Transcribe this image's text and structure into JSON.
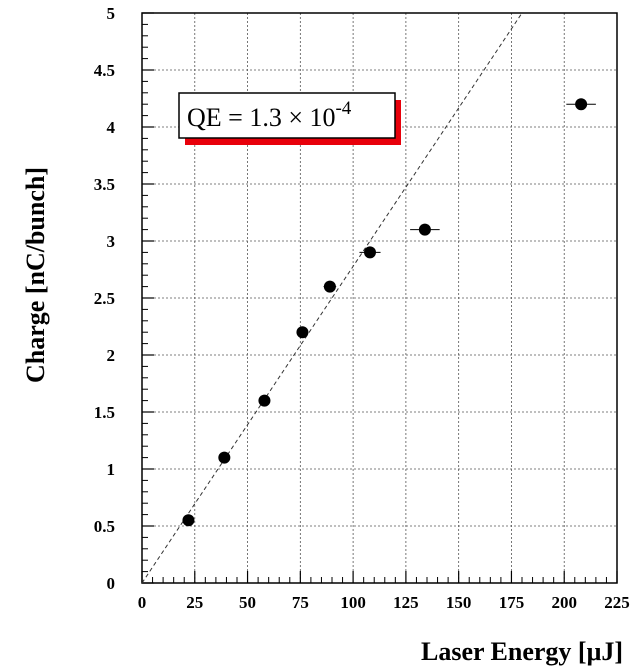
{
  "chart_data": {
    "type": "scatter",
    "xlabel": "Laser Energy [μJ]",
    "ylabel": "Charge [nC/bunch]",
    "xlim": [
      0,
      225
    ],
    "ylim": [
      0,
      5
    ],
    "xticks": [
      0,
      25,
      50,
      75,
      100,
      125,
      150,
      175,
      200,
      225
    ],
    "yticks": [
      0,
      0.5,
      1,
      1.5,
      2,
      2.5,
      3,
      3.5,
      4,
      4.5,
      5
    ],
    "grid": true,
    "points": [
      {
        "x": 22,
        "y": 0.55,
        "xerr": 1
      },
      {
        "x": 39,
        "y": 1.1,
        "xerr": 1
      },
      {
        "x": 58,
        "y": 1.6,
        "xerr": 1.5
      },
      {
        "x": 76,
        "y": 2.2,
        "xerr": 1.5
      },
      {
        "x": 89,
        "y": 2.6,
        "xerr": 3
      },
      {
        "x": 108,
        "y": 2.9,
        "xerr": 5
      },
      {
        "x": 134,
        "y": 3.1,
        "xerr": 7
      },
      {
        "x": 208,
        "y": 4.2,
        "xerr": 7
      }
    ],
    "fit_line": {
      "x": [
        0,
        180
      ],
      "y": [
        0,
        5
      ],
      "style": "dashed"
    },
    "annotation": {
      "prefix": "QE = 1.3 × 10",
      "exponent": "-4"
    },
    "colors": {
      "points": "#000000",
      "annotation_shadow": "#e8000b",
      "grid": "#555555"
    }
  }
}
